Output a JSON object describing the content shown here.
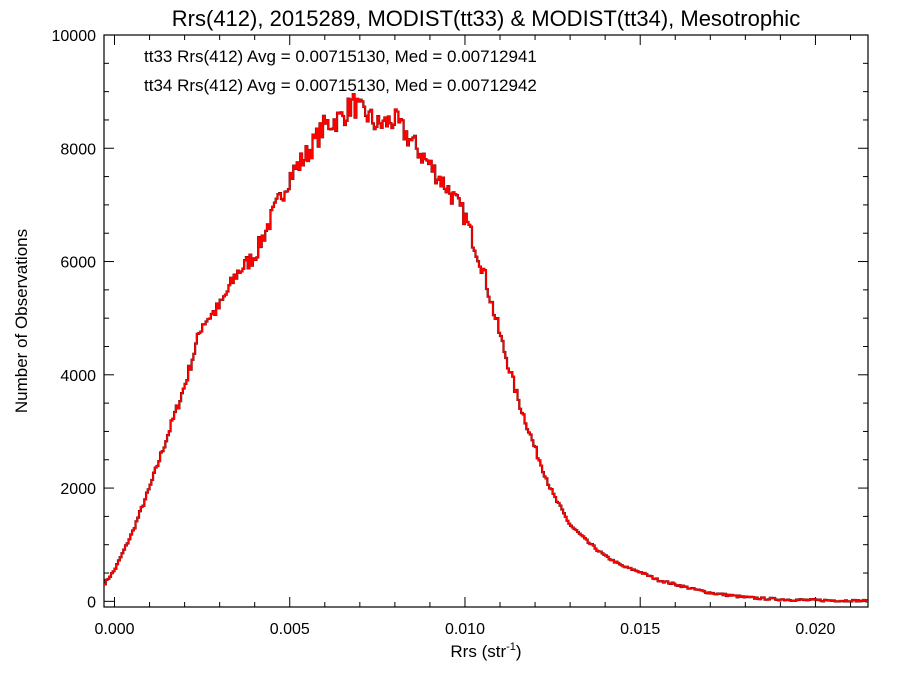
{
  "chart_data": {
    "type": "line",
    "step": true,
    "title": "Rrs(412), 2015289, MODIST(tt33) & MODIST(tt34), Mesotrophic",
    "xlabel": "Rrs (str",
    "xlabel_sup": "-1",
    "xlabel_close": ")",
    "ylabel": "Number of Observations",
    "xlim": [
      -0.0003,
      0.0215
    ],
    "ylim": [
      -100,
      10000
    ],
    "xticks": [
      0.0,
      0.005,
      0.01,
      0.015,
      0.02
    ],
    "xtick_labels": [
      "0.000",
      "0.005",
      "0.010",
      "0.015",
      "0.020"
    ],
    "yticks": [
      0,
      2000,
      4000,
      6000,
      8000,
      10000
    ],
    "ytick_labels": [
      "0",
      "2000",
      "4000",
      "6000",
      "8000",
      "10000"
    ],
    "grid": false,
    "annotations": [
      {
        "text": "tt33 Rrs(412) Avg = 0.00715130, Med = 0.00712941",
        "color": "#000000"
      },
      {
        "text": "tt34 Rrs(412) Avg = 0.00715130, Med = 0.00712942",
        "color": "#ff0000"
      }
    ],
    "series": [
      {
        "color": "#000000",
        "x": [
          -0.0003,
          0.0,
          0.0005,
          0.001,
          0.0015,
          0.002,
          0.0025,
          0.003,
          0.0035,
          0.004,
          0.0045,
          0.005,
          0.0055,
          0.006,
          0.0065,
          0.0068,
          0.007,
          0.0072,
          0.0075,
          0.008,
          0.0085,
          0.009,
          0.0095,
          0.01,
          0.0105,
          0.011,
          0.0115,
          0.012,
          0.0125,
          0.013,
          0.0135,
          0.014,
          0.0145,
          0.015,
          0.0155,
          0.016,
          0.0165,
          0.017,
          0.0175,
          0.018,
          0.0185,
          0.019,
          0.0195,
          0.02,
          0.0205,
          0.021,
          0.0215
        ],
        "y": [
          300,
          550,
          1200,
          2000,
          2900,
          3800,
          4900,
          5200,
          5800,
          6100,
          6800,
          7500,
          7900,
          8400,
          8550,
          8800,
          8650,
          8600,
          8400,
          8500,
          8100,
          7700,
          7300,
          6800,
          5900,
          4700,
          3600,
          2700,
          1900,
          1350,
          1050,
          800,
          620,
          520,
          380,
          300,
          220,
          150,
          110,
          70,
          50,
          35,
          25,
          20,
          15,
          10,
          8
        ]
      },
      {
        "color": "#ff0000",
        "x": [
          -0.0003,
          0.0,
          0.0005,
          0.001,
          0.0015,
          0.002,
          0.0025,
          0.003,
          0.0035,
          0.004,
          0.0045,
          0.005,
          0.0055,
          0.006,
          0.0065,
          0.0068,
          0.007,
          0.0072,
          0.0075,
          0.008,
          0.0085,
          0.009,
          0.0095,
          0.01,
          0.0105,
          0.011,
          0.0115,
          0.012,
          0.0125,
          0.013,
          0.0135,
          0.014,
          0.0145,
          0.015,
          0.0155,
          0.016,
          0.0165,
          0.017,
          0.0175,
          0.018,
          0.0185,
          0.019,
          0.0195,
          0.02,
          0.0205,
          0.021,
          0.0215
        ],
        "y": [
          300,
          550,
          1200,
          2000,
          2900,
          3800,
          4900,
          5200,
          5800,
          6100,
          6800,
          7500,
          7900,
          8400,
          8550,
          8800,
          8650,
          8600,
          8400,
          8500,
          8100,
          7700,
          7300,
          6800,
          5900,
          4700,
          3600,
          2700,
          1900,
          1350,
          1050,
          800,
          620,
          520,
          380,
          300,
          220,
          150,
          110,
          70,
          50,
          35,
          25,
          20,
          15,
          10,
          8
        ]
      }
    ]
  }
}
